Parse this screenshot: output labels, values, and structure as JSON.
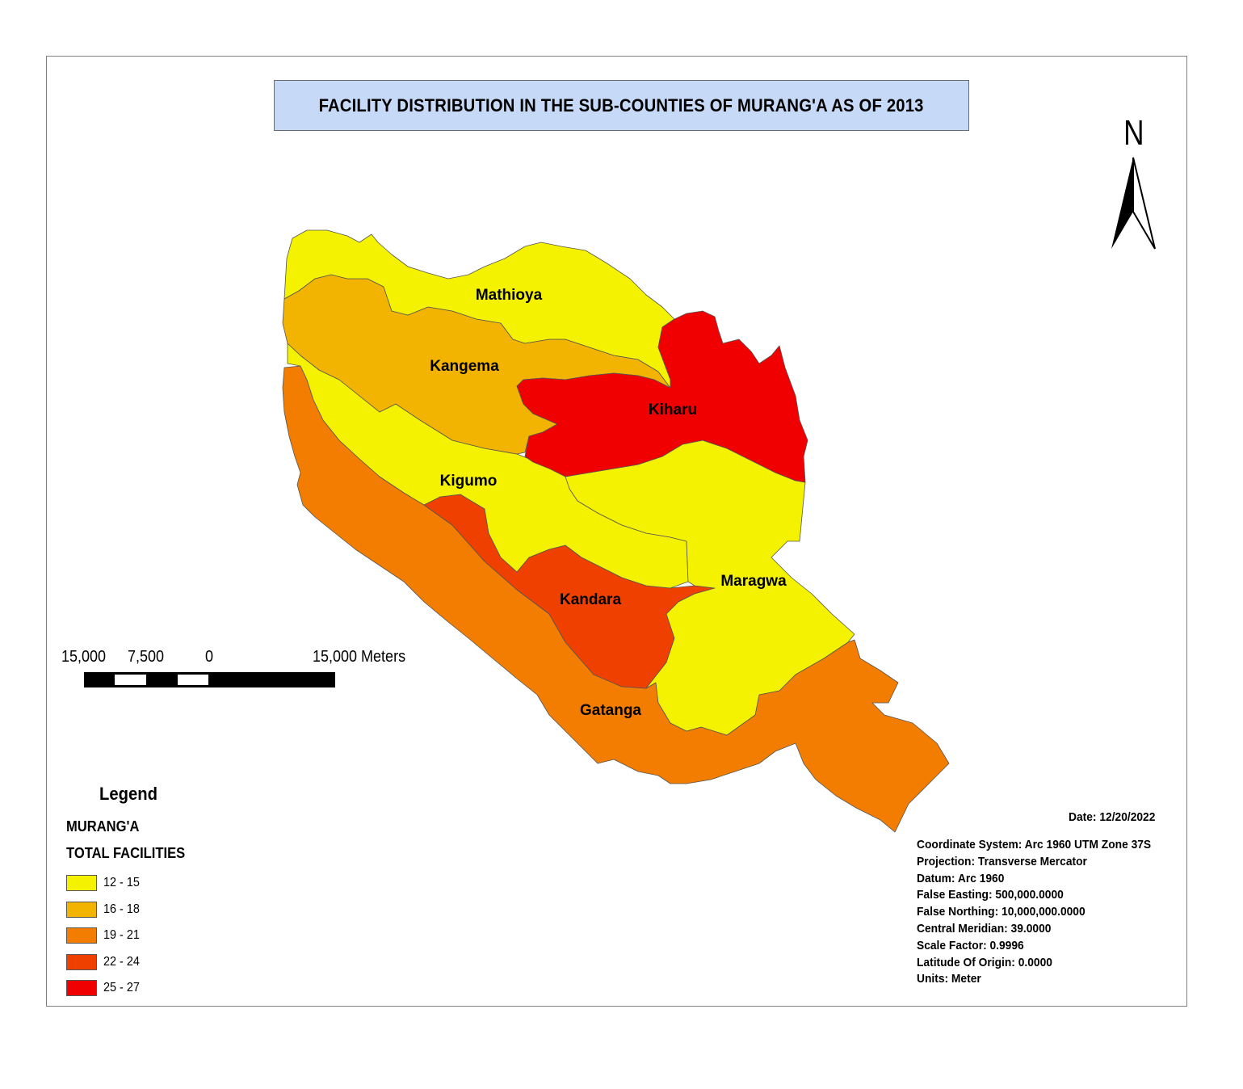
{
  "title": "FACILITY DISTRIBUTION IN THE SUB-COUNTIES OF MURANG'A  AS OF 2013",
  "north_label": "N",
  "scale_bar": {
    "labels": [
      "15,000",
      "7,500",
      "0",
      "15,000 Meters"
    ]
  },
  "legend": {
    "title": "Legend",
    "layer": "MURANG'A",
    "field": "TOTAL FACILITIES",
    "classes": [
      {
        "label": "12 - 15",
        "color": "#f5f200"
      },
      {
        "label": "16 - 18",
        "color": "#f2b400"
      },
      {
        "label": "19 - 21",
        "color": "#f27d00"
      },
      {
        "label": "22 - 24",
        "color": "#f04000"
      },
      {
        "label": "25 - 27",
        "color": "#f00000"
      }
    ]
  },
  "regions": [
    {
      "name": "Mathioya",
      "total_facilities_class": "12 - 15"
    },
    {
      "name": "Kangema",
      "total_facilities_class": "16 - 18"
    },
    {
      "name": "Kiharu",
      "total_facilities_class": "25 - 27"
    },
    {
      "name": "Kigumo",
      "total_facilities_class": "12 - 15"
    },
    {
      "name": "Maragwa",
      "total_facilities_class": "12 - 15"
    },
    {
      "name": "Kandara",
      "total_facilities_class": "22 - 24"
    },
    {
      "name": "Gatanga",
      "total_facilities_class": "19 - 21"
    }
  ],
  "date": "Date: 12/20/2022",
  "projection_info": [
    "Coordinate System: Arc 1960 UTM Zone 37S",
    "Projection: Transverse Mercator",
    "Datum: Arc 1960",
    "False Easting: 500,000.0000",
    "False Northing: 10,000,000.0000",
    "Central Meridian: 39.0000",
    "Scale Factor: 0.9996",
    "Latitude Of Origin: 0.0000",
    "Units: Meter"
  ]
}
